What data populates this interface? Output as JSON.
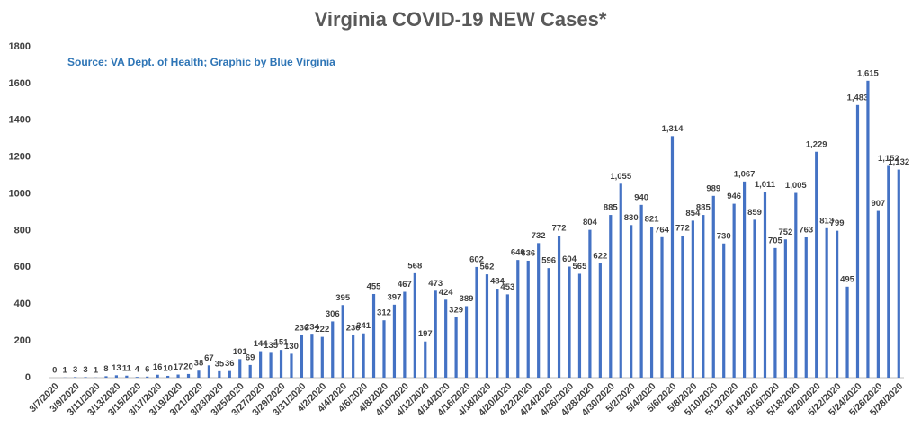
{
  "chart_data": {
    "type": "bar",
    "title": "Virginia COVID-19 NEW Cases*",
    "annotation": "Source: VA Dept. of Health; Graphic by Blue Virginia",
    "color": "#4472c4",
    "ylim": [
      0,
      1800
    ],
    "yticks": [
      0,
      200,
      400,
      600,
      800,
      1000,
      1200,
      1400,
      1600,
      1800
    ],
    "grid": false,
    "categories": [
      "3/7/2020",
      null,
      "3/9/2020",
      null,
      "3/11/2020",
      null,
      "3/13/2020",
      null,
      "3/15/2020",
      null,
      "3/17/2020",
      null,
      "3/19/2020",
      null,
      "3/21/2020",
      null,
      "3/23/2020",
      null,
      "3/25/2020",
      null,
      "3/27/2020",
      null,
      "3/29/2020",
      null,
      "3/31/2020",
      null,
      "4/2/2020",
      null,
      "4/4/2020",
      null,
      "4/6/2020",
      null,
      "4/8/2020",
      null,
      "4/10/2020",
      null,
      "4/12/2020",
      null,
      "4/14/2020",
      null,
      "4/16/2020",
      null,
      "4/18/2020",
      null,
      "4/20/2020",
      null,
      "4/22/2020",
      null,
      "4/24/2020",
      null,
      "4/26/2020",
      null,
      "4/28/2020",
      null,
      "4/30/2020",
      null,
      "5/2/2020",
      null,
      "5/4/2020",
      null,
      "5/6/2020",
      null,
      "5/8/2020",
      null,
      "5/10/2020",
      null,
      "5/12/2020",
      null,
      "5/14/2020",
      null,
      "5/16/2020",
      null,
      "5/18/2020",
      null,
      "5/20/2020",
      null,
      "5/22/2020",
      null,
      "5/24/2020",
      null,
      "5/26/2020",
      null,
      "5/28/2020"
    ],
    "values": [
      0,
      1,
      3,
      3,
      1,
      8,
      13,
      11,
      4,
      6,
      16,
      10,
      17,
      20,
      38,
      67,
      35,
      36,
      101,
      69,
      144,
      135,
      151,
      130,
      230,
      234,
      222,
      306,
      395,
      230,
      241,
      455,
      312,
      397,
      467,
      568,
      197,
      473,
      424,
      329,
      389,
      602,
      562,
      484,
      453,
      640,
      636,
      732,
      596,
      772,
      604,
      565,
      804,
      622,
      885,
      1055,
      830,
      940,
      821,
      764,
      1314,
      772,
      854,
      885,
      989,
      730,
      946,
      1067,
      859,
      1011,
      705,
      752,
      1005,
      763,
      1229,
      813,
      799,
      495,
      1483,
      1615,
      907,
      1152,
      1132
    ],
    "value_labels": [
      "0",
      "1",
      "3",
      "3",
      "1",
      "8",
      "13",
      "11",
      "4",
      "6",
      "16",
      "10",
      "17",
      "20",
      "38",
      "67",
      "35",
      "36",
      "101",
      "69",
      "144",
      "135",
      "151",
      "130",
      "230",
      "234",
      "222",
      "306",
      "395",
      "230",
      "241",
      "455",
      "312",
      "397",
      "467",
      "568",
      "197",
      "473",
      "424",
      "329",
      "389",
      "602",
      "562",
      "484",
      "453",
      "640",
      "636",
      "732",
      "596",
      "772",
      "604",
      "565",
      "804",
      "622",
      "885",
      "1,055",
      "830",
      "940",
      "821",
      "764",
      "1,314",
      "772",
      "854",
      "885",
      "989",
      "730",
      "946",
      "1,067",
      "859",
      "1,011",
      "705",
      "752",
      "1,005",
      "763",
      "1,229",
      "813",
      "799",
      "495",
      "1,483",
      "1,615",
      "907",
      "1,152",
      "1,132"
    ]
  }
}
